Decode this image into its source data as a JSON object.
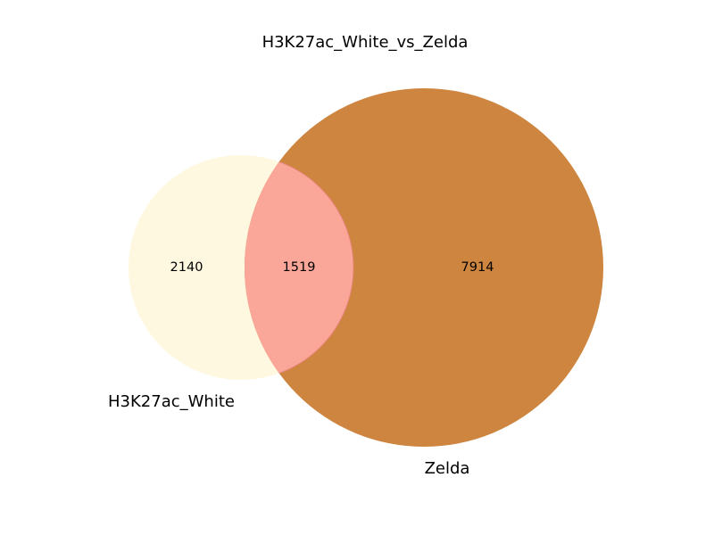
{
  "title": "H3K27ac_White_vs_Zelda",
  "sets": [
    {
      "name": "H3K27ac_White",
      "label": "H3K27ac_White",
      "color": "#FFF8E0"
    },
    {
      "name": "Zelda",
      "label": "Zelda",
      "color": "#CD853F"
    }
  ],
  "regions": {
    "only_a": "2140",
    "intersection": "1519",
    "only_b": "7914"
  },
  "colors": {
    "intersection": "#FAA79A",
    "intersection_edge": "#E8857B",
    "background": "#FFFFFF"
  }
}
